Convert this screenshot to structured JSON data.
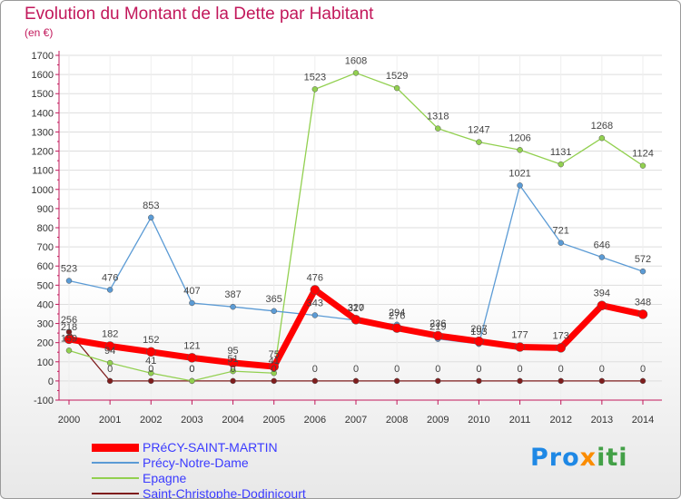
{
  "chart_data": {
    "type": "line",
    "title": "Evolution du Montant de la Dette par Habitant",
    "subtitle": "(en €)",
    "categories": [
      "2000",
      "2001",
      "2002",
      "2003",
      "2004",
      "2005",
      "2006",
      "2007",
      "2008",
      "2009",
      "2010",
      "2011",
      "2012",
      "2013",
      "2014"
    ],
    "ylim": [
      -100,
      1700
    ],
    "yticks": [
      -100,
      0,
      100,
      200,
      300,
      400,
      500,
      600,
      700,
      800,
      900,
      1000,
      1100,
      1200,
      1300,
      1400,
      1500,
      1600,
      1700
    ],
    "grid": true,
    "legend_position": "bottom-left",
    "series": [
      {
        "name": "PRéCY-SAINT-MARTIN",
        "color": "#ff0000",
        "values": [
          218,
          182,
          152,
          121,
          95,
          75,
          476,
          320,
          276,
          236,
          207,
          177,
          173,
          394,
          348
        ]
      },
      {
        "name": "Précy-Notre-Dame",
        "color": "#5b9bd5",
        "values": [
          523,
          476,
          853,
          407,
          387,
          365,
          343,
          317,
          294,
          219,
          193,
          1021,
          721,
          646,
          572
        ]
      },
      {
        "name": "Epagne",
        "color": "#92d050",
        "values": [
          159,
          94,
          41,
          0,
          51,
          41,
          1523,
          1608,
          1529,
          1318,
          1247,
          1206,
          1131,
          1268,
          1124
        ]
      },
      {
        "name": "Saint-Christophe-Dodinicourt",
        "color": "#7f1d1d",
        "values": [
          256,
          0,
          0,
          0,
          0,
          0,
          0,
          0,
          0,
          0,
          0,
          0,
          0,
          0,
          0
        ]
      }
    ]
  },
  "logo": {
    "part1": "Pro",
    "part2": "x",
    "part3": "iti"
  }
}
